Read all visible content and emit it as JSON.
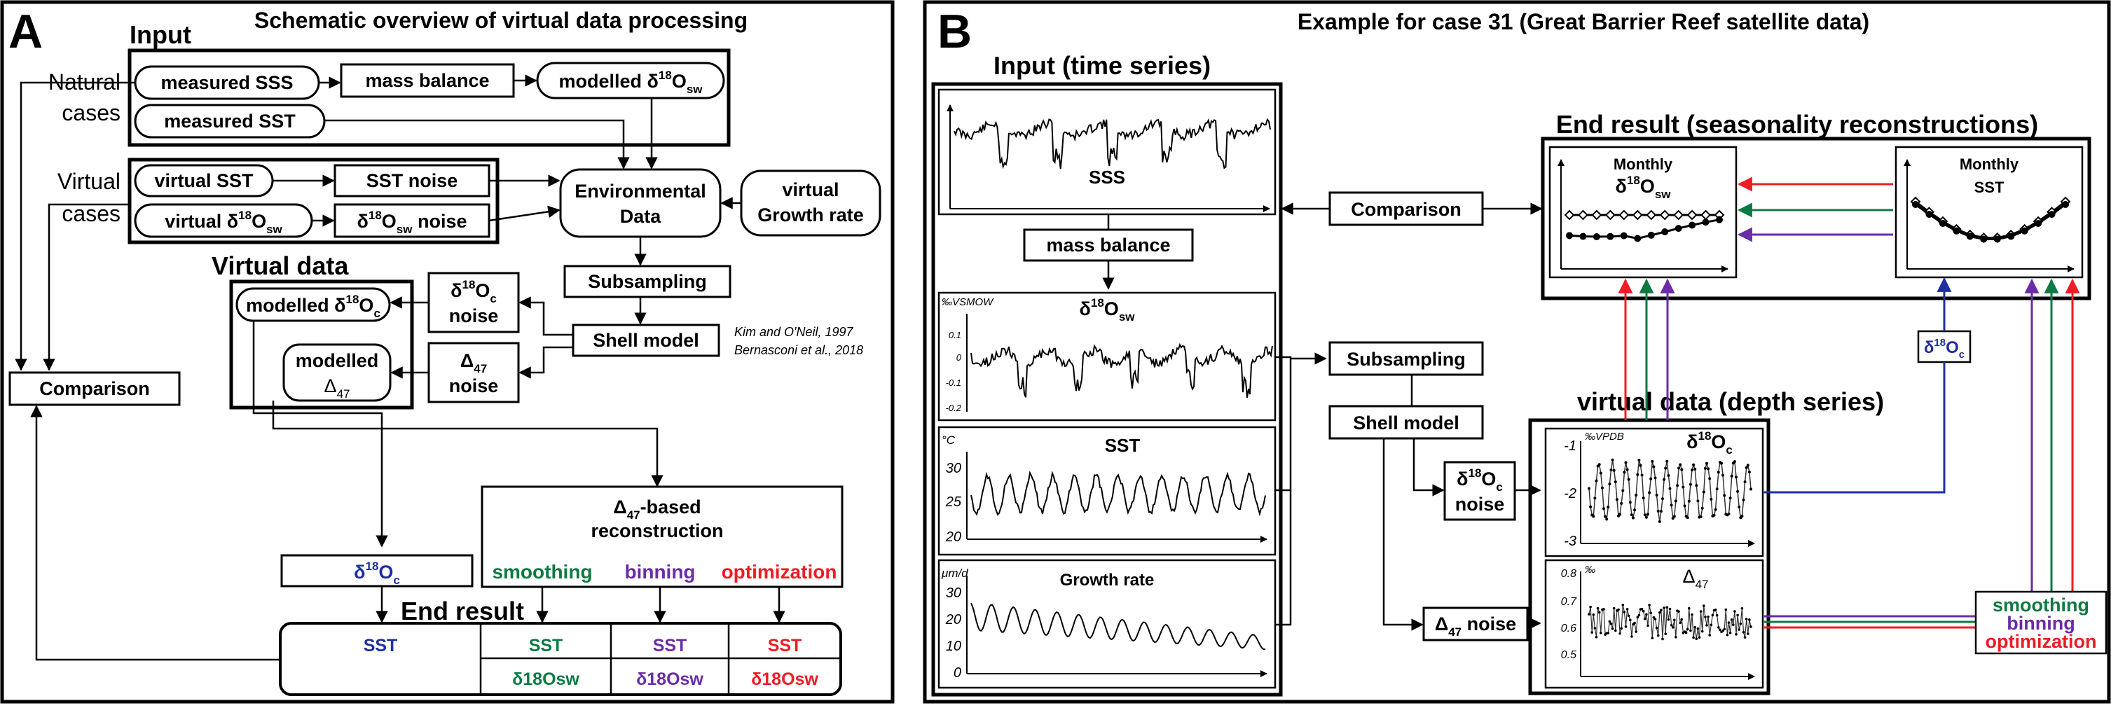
{
  "panel_a": {
    "letter": "A",
    "title": "Schematic overview of virtual data processing",
    "input_heading": "Input",
    "natural_label_1": "Natural",
    "natural_label_2": "cases",
    "measured_sss": "measured SSS",
    "mass_balance": "mass balance",
    "modelled_d18osw_prefix": "modelled δ",
    "measured_sst": "measured SST",
    "virtual_label_1": "Virtual",
    "virtual_label_2": "cases",
    "virtual_sst": "virtual SST",
    "sst_noise": "SST noise",
    "virtual_d18osw_prefix": "virtual δ",
    "d18osw_noise_prefix": "δ",
    "d18osw_noise_suffix": " noise",
    "environmental_data_1": "Environmental",
    "environmental_data_2": "Data",
    "virtual_growth_1": "virtual",
    "virtual_growth_2": "Growth rate",
    "virtual_data_heading": "Virtual data",
    "subsampling": "Subsampling",
    "modelled_d18oc_prefix": "modelled δ",
    "d18oc_noise_prefix": "δ",
    "d18oc_noise_line2": "noise",
    "shell_model": "Shell model",
    "ref_1": "Kim and O'Neil, 1997",
    "ref_2": "Bernasconi et al., 2018",
    "modelled_d47_1": "modelled",
    "modelled_d47_2": "Δ",
    "d47_noise_1": "Δ",
    "d47_noise_2": "noise",
    "comparison": "Comparison",
    "d47_recon_1": "-based",
    "d47_recon_2": "reconstruction",
    "d47_recon_delta": "Δ",
    "smoothing": "smoothing",
    "binning": "binning",
    "optimization": "optimization",
    "d18oc_box_prefix": "δ",
    "end_result": "End result",
    "sst": "SST",
    "d18osw": "δ18Osw",
    "sub_18": "18",
    "sub_o": "O",
    "sub_sw": "sw",
    "sub_c": "c",
    "sub_47": "47"
  },
  "panel_b": {
    "letter": "B",
    "title": "Example for case 31 (Great Barrier Reef satellite data)",
    "input_heading": "Input (time series)",
    "sss_label": "SSS",
    "mass_balance": "mass balance",
    "d18osw_unit": "‰VSMOW",
    "d18osw_ticks": [
      "0.1",
      "0",
      "-0.1",
      "-0.2"
    ],
    "sst_unit": "°C",
    "sst_label": "SST",
    "sst_ticks": [
      "30",
      "25",
      "20"
    ],
    "growth_unit": "μm/d",
    "growth_label": "Growth rate",
    "growth_ticks": [
      "30",
      "20",
      "10",
      "0"
    ],
    "comparison": "Comparison",
    "end_result_heading": "End result (seasonality reconstructions)",
    "monthly": "Monthly",
    "monthly_sst": "SST",
    "subsampling": "Subsampling",
    "shell_model": "Shell model",
    "virtual_data_heading": "virtual data (depth series)",
    "d18oc_noise_2": "noise",
    "d47_noise": " noise",
    "d18oc_unit": "‰VPDB",
    "d18oc_ticks": [
      "-1",
      "-2",
      "-3"
    ],
    "d47_unit": "‰",
    "d47_ticks": [
      "0.8",
      "0.7",
      "0.6",
      "0.5"
    ],
    "smoothing": "smoothing",
    "binning": "binning",
    "optimization": "optimization"
  },
  "colors": {
    "blue": "#1f2fa0",
    "green": "#0e7a43",
    "purple": "#6a2ca8",
    "red": "#ee1c24"
  }
}
